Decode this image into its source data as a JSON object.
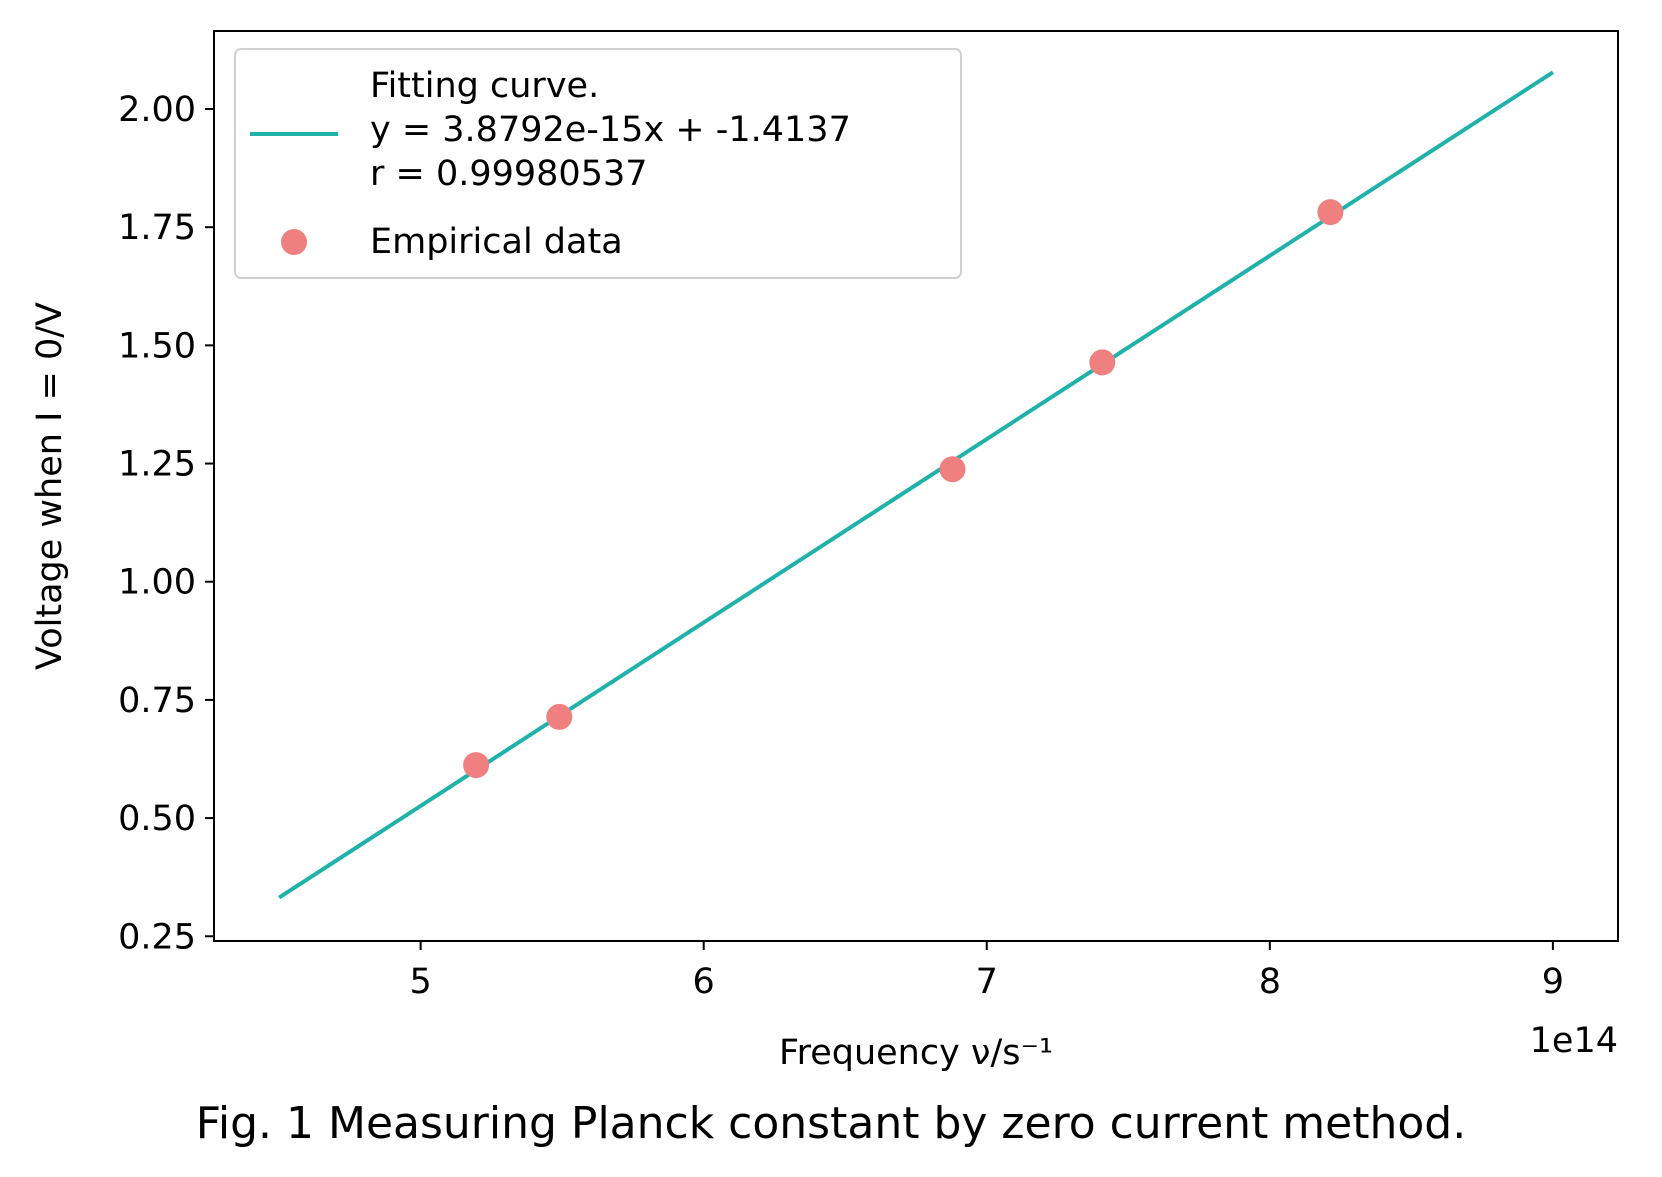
{
  "chart_data": {
    "type": "scatter",
    "xlabel": "Frequency ν/s⁻¹",
    "ylabel": "Voltage when I = 0/V",
    "x_offset_text": "1e14",
    "xlim": [
      427000000000000.0,
      923000000000000.0
    ],
    "ylim": [
      0.24,
      2.165
    ],
    "xticks": [
      500000000000000.0,
      600000000000000.0,
      700000000000000.0,
      800000000000000.0,
      900000000000000.0
    ],
    "xtick_labels": [
      "5",
      "6",
      "7",
      "8",
      "9"
    ],
    "yticks": [
      0.25,
      0.5,
      0.75,
      1.0,
      1.25,
      1.5,
      1.75,
      2.0
    ],
    "ytick_labels": [
      "0.25",
      "0.50",
      "0.75",
      "1.00",
      "1.25",
      "1.50",
      "1.75",
      "2.00"
    ],
    "grid": false,
    "legend_position": "top-left",
    "series": [
      {
        "name": "Fitting curve.\ny = 3.8792e-15x + -1.4137\nr = 0.99980537",
        "kind": "line",
        "color": "#20b2aa",
        "slope": 3.8792e-15,
        "intercept": -1.4137,
        "x": [
          450000000000000.0,
          900000000000000.0
        ],
        "y": [
          0.3319,
          2.0776
        ]
      },
      {
        "name": "Empirical data",
        "kind": "scatter",
        "color": "#f08080",
        "x": [
          519600000000000.0,
          549000000000000.0,
          687900000000000.0,
          740800000000000.0,
          821400000000000.0
        ],
        "y": [
          0.612,
          0.714,
          1.238,
          1.464,
          1.782
        ]
      }
    ]
  },
  "caption": "Fig. 1 Measuring Planck constant by zero current method."
}
